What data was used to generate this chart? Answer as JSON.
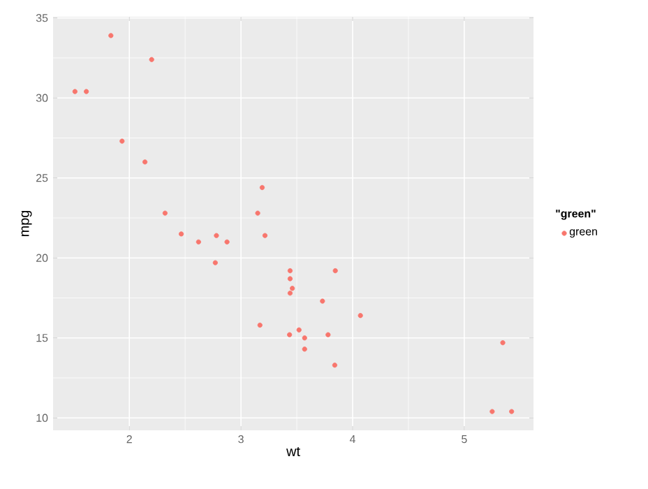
{
  "chart_data": {
    "type": "scatter",
    "xlabel": "wt",
    "ylabel": "mpg",
    "legend_title": "\"green\"",
    "legend": "right",
    "grid": true,
    "marker": "circle",
    "xlim": [
      1.317,
      5.62
    ],
    "ylim": [
      9.225,
      35.075
    ],
    "xticks": [
      2,
      3,
      4,
      5
    ],
    "yticks": [
      10,
      15,
      20,
      25,
      30,
      35
    ],
    "series": [
      {
        "name": "green",
        "color": "#f8766d",
        "x": [
          2.62,
          2.875,
          2.32,
          3.215,
          3.44,
          3.46,
          3.57,
          3.19,
          3.15,
          3.44,
          3.44,
          4.07,
          3.73,
          3.78,
          5.25,
          5.424,
          5.345,
          2.2,
          1.615,
          1.835,
          2.465,
          3.52,
          3.435,
          3.84,
          3.845,
          1.935,
          2.14,
          1.513,
          3.17,
          2.77,
          3.57,
          2.78
        ],
        "values": [
          21.0,
          21.0,
          22.8,
          21.4,
          18.7,
          18.1,
          14.3,
          24.4,
          22.8,
          19.2,
          17.8,
          16.4,
          17.3,
          15.2,
          10.4,
          10.4,
          14.7,
          32.4,
          30.4,
          33.9,
          21.5,
          15.5,
          15.2,
          13.3,
          19.2,
          27.3,
          26.0,
          30.4,
          15.8,
          19.7,
          15.0,
          21.4
        ]
      }
    ]
  }
}
